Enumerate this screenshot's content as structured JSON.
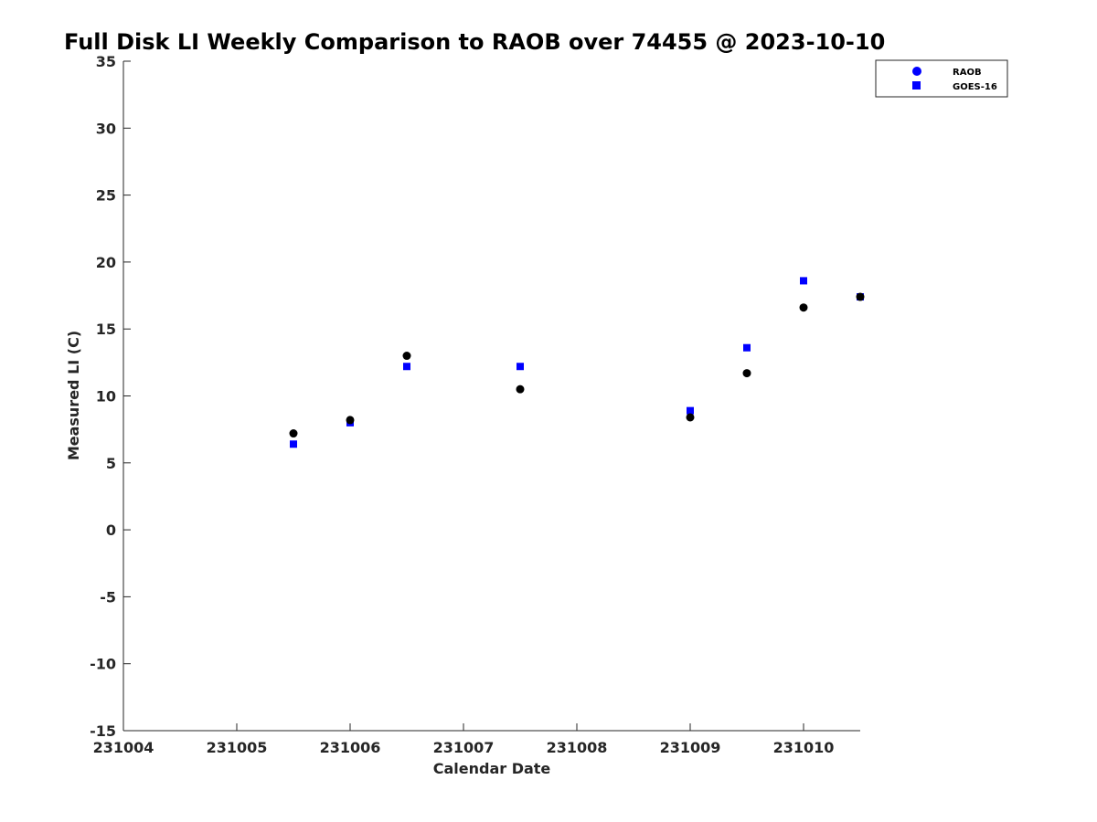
{
  "chart_data": {
    "type": "scatter",
    "title": "Full Disk LI Weekly Comparison to RAOB over 74455 @ 2023-10-10",
    "xlabel": "Calendar Date",
    "ylabel": "Measured LI (C)",
    "xlim": [
      231004,
      231010.5
    ],
    "ylim": [
      -15,
      35
    ],
    "xticks": [
      231004,
      231005,
      231006,
      231007,
      231008,
      231009,
      231010
    ],
    "xtick_labels": [
      "231004",
      "231005",
      "231006",
      "231007",
      "231008",
      "231009",
      "231010"
    ],
    "yticks": [
      -15,
      -10,
      -5,
      0,
      5,
      10,
      15,
      20,
      25,
      30,
      35
    ],
    "ytick_labels": [
      "-15",
      "-10",
      "-5",
      "0",
      "5",
      "10",
      "15",
      "20",
      "25",
      "30",
      "35"
    ],
    "grid": false,
    "legend_position": "top-right",
    "series": [
      {
        "name": "RAOB",
        "marker": "circle",
        "color": "#000000",
        "legend_color": "#0000ff",
        "points": [
          {
            "x": 231005.5,
            "y": 7.2
          },
          {
            "x": 231006.0,
            "y": 8.2
          },
          {
            "x": 231006.5,
            "y": 13.0
          },
          {
            "x": 231007.5,
            "y": 10.5
          },
          {
            "x": 231009.0,
            "y": 8.4
          },
          {
            "x": 231009.5,
            "y": 11.7
          },
          {
            "x": 231010.0,
            "y": 16.6
          },
          {
            "x": 231010.5,
            "y": 17.4
          }
        ]
      },
      {
        "name": "GOES-16",
        "marker": "square",
        "color": "#0000ff",
        "legend_color": "#0000ff",
        "points": [
          {
            "x": 231005.5,
            "y": 6.4
          },
          {
            "x": 231006.0,
            "y": 8.0
          },
          {
            "x": 231006.5,
            "y": 12.2
          },
          {
            "x": 231007.5,
            "y": 12.2
          },
          {
            "x": 231009.0,
            "y": 8.9
          },
          {
            "x": 231009.5,
            "y": 13.6
          },
          {
            "x": 231010.0,
            "y": 18.6
          },
          {
            "x": 231010.5,
            "y": 17.4
          }
        ]
      }
    ]
  }
}
